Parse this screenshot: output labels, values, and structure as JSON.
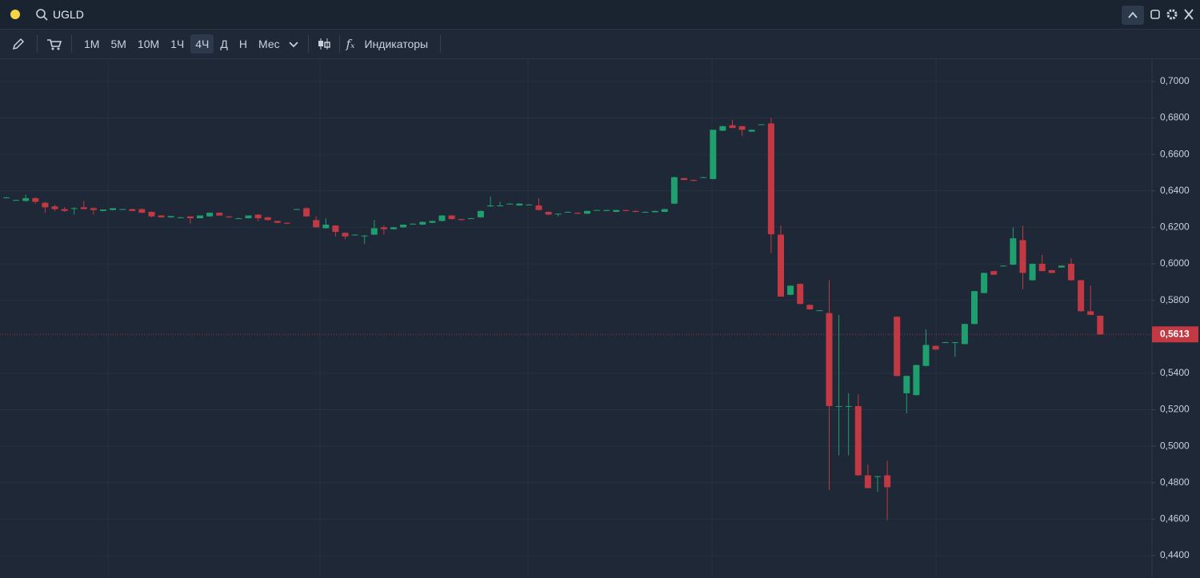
{
  "header": {
    "symbol": "UGLD"
  },
  "toolbar": {
    "intervals": [
      {
        "label": "1М",
        "active": false
      },
      {
        "label": "5М",
        "active": false
      },
      {
        "label": "10М",
        "active": false
      },
      {
        "label": "1Ч",
        "active": false
      },
      {
        "label": "4Ч",
        "active": true
      },
      {
        "label": "Д",
        "active": false
      },
      {
        "label": "Н",
        "active": false
      },
      {
        "label": "Мес",
        "active": false
      }
    ],
    "indicators": "Индикаторы"
  },
  "chart_data": {
    "type": "candlestick",
    "categories": [
      null,
      null,
      null,
      null,
      null,
      null,
      null,
      null,
      null,
      null,
      null,
      null,
      null,
      null,
      null,
      null,
      null,
      null,
      null,
      null,
      null,
      null,
      null,
      null,
      null,
      null,
      null,
      null,
      null,
      null,
      null,
      null,
      null,
      null,
      null,
      null,
      null,
      null,
      null,
      null,
      null,
      null,
      null,
      null,
      null,
      null,
      null,
      null,
      null,
      null,
      null,
      null,
      null,
      null,
      null,
      null,
      null,
      null,
      null,
      null,
      null,
      null,
      null,
      null,
      null,
      null,
      null,
      null,
      null,
      null,
      null,
      null,
      null,
      null,
      null,
      null,
      null,
      null,
      null,
      null,
      null,
      null,
      null,
      null,
      null,
      null,
      null,
      null,
      null,
      null,
      null,
      null,
      null,
      null,
      null,
      null,
      null,
      null,
      null,
      null,
      null,
      null,
      null,
      null,
      null,
      null,
      null,
      null,
      null,
      null,
      null,
      null,
      null,
      null
    ],
    "open": [
      0.6364,
      0.635,
      0.6345,
      0.636,
      0.6335,
      0.6315,
      0.63,
      0.6305,
      0.631,
      0.6305,
      0.629,
      0.6295,
      0.63,
      0.63,
      0.63,
      0.6285,
      0.6265,
      0.6255,
      0.6255,
      0.626,
      0.625,
      0.626,
      0.628,
      0.626,
      0.625,
      0.625,
      0.627,
      0.6255,
      0.6235,
      0.6225,
      0.63,
      0.6305,
      0.624,
      0.6195,
      0.621,
      0.617,
      0.616,
      0.6155,
      0.616,
      0.62,
      0.619,
      0.62,
      0.622,
      0.6215,
      0.6225,
      0.6235,
      0.6265,
      0.6245,
      0.625,
      0.6255,
      0.6315,
      0.632,
      0.633,
      0.632,
      0.6325,
      0.632,
      0.6285,
      0.6275,
      0.6285,
      0.628,
      0.6275,
      0.6295,
      0.629,
      0.6285,
      0.6295,
      0.629,
      0.6285,
      0.6283,
      0.6285,
      0.633,
      0.647,
      0.646,
      0.6475,
      0.6465,
      0.673,
      0.676,
      0.6755,
      0.6725,
      0.6765,
      0.677,
      0.616,
      0.583,
      0.589,
      0.5775,
      0.5745,
      0.573,
      0.522,
      0.522,
      0.522,
      0.484,
      0.4835,
      0.484,
      0.571,
      0.529,
      0.528,
      0.544,
      0.555,
      0.557,
      0.557,
      0.556,
      0.567,
      0.584,
      0.596,
      0.599,
      0.5995,
      0.613,
      0.591,
      0.6,
      0.5965,
      0.598,
      0.6,
      0.591,
      0.574,
      0.5715
    ],
    "high": [
      0.6368,
      0.6352,
      0.638,
      0.6365,
      0.634,
      0.6325,
      0.631,
      0.631,
      0.6345,
      0.631,
      0.6298,
      0.6305,
      0.6302,
      0.6302,
      0.6305,
      0.6288,
      0.6267,
      0.6262,
      0.6257,
      0.6262,
      0.6265,
      0.6282,
      0.6282,
      0.6262,
      0.6252,
      0.6265,
      0.6272,
      0.6257,
      0.6237,
      0.6227,
      0.6302,
      0.631,
      0.626,
      0.625,
      0.6212,
      0.6172,
      0.6162,
      0.6157,
      0.624,
      0.621,
      0.6202,
      0.6215,
      0.6222,
      0.6232,
      0.6237,
      0.6267,
      0.6267,
      0.6247,
      0.6252,
      0.6292,
      0.637,
      0.634,
      0.6332,
      0.6332,
      0.6327,
      0.636,
      0.6287,
      0.6277,
      0.6287,
      0.6282,
      0.6292,
      0.6297,
      0.6297,
      0.6297,
      0.6297,
      0.6292,
      0.6287,
      0.6292,
      0.6302,
      0.6478,
      0.6472,
      0.6462,
      0.6477,
      0.6736,
      0.6757,
      0.679,
      0.6757,
      0.6737,
      0.6767,
      0.68,
      0.621,
      0.5882,
      0.5892,
      0.5777,
      0.5747,
      0.591,
      0.572,
      0.529,
      0.5285,
      0.49,
      0.4837,
      0.492,
      0.5712,
      0.5387,
      0.5447,
      0.564,
      0.5552,
      0.5572,
      0.5572,
      0.5672,
      0.5852,
      0.5952,
      0.5962,
      0.5992,
      0.62,
      0.621,
      0.6002,
      0.605,
      0.5967,
      0.5992,
      0.603,
      0.5912,
      0.588,
      0.5717
    ],
    "low": [
      0.636,
      0.6348,
      0.634,
      0.633,
      0.628,
      0.629,
      0.6285,
      0.627,
      0.63,
      0.627,
      0.6288,
      0.6293,
      0.6298,
      0.6288,
      0.6278,
      0.6255,
      0.6253,
      0.6253,
      0.6253,
      0.622,
      0.6248,
      0.6258,
      0.6263,
      0.6253,
      0.6248,
      0.6248,
      0.6235,
      0.6238,
      0.6223,
      0.6218,
      0.6298,
      0.6258,
      0.6198,
      0.6193,
      0.615,
      0.6135,
      0.6158,
      0.611,
      0.6158,
      0.616,
      0.6188,
      0.6198,
      0.6218,
      0.6213,
      0.6223,
      0.6233,
      0.6243,
      0.6238,
      0.6248,
      0.6253,
      0.6313,
      0.6318,
      0.6328,
      0.6318,
      0.6323,
      0.6293,
      0.6268,
      0.626,
      0.6283,
      0.6273,
      0.6273,
      0.6293,
      0.6288,
      0.6283,
      0.6288,
      0.6283,
      0.6283,
      0.6281,
      0.6283,
      0.6328,
      0.6458,
      0.6453,
      0.6473,
      0.6463,
      0.6728,
      0.6743,
      0.67,
      0.6723,
      0.6763,
      0.606,
      0.582,
      0.5828,
      0.5778,
      0.5748,
      0.5743,
      0.476,
      0.495,
      0.495,
      0.4838,
      0.4768,
      0.475,
      0.4595,
      0.5383,
      0.518,
      0.5278,
      0.5438,
      0.5528,
      0.5568,
      0.549,
      0.5558,
      0.5668,
      0.5838,
      0.5938,
      0.5988,
      0.5993,
      0.586,
      0.5908,
      0.5958,
      0.5948,
      0.5978,
      0.5908,
      0.5738,
      0.5718,
      0.5611
    ],
    "close": [
      0.6364,
      0.635,
      0.636,
      0.634,
      0.631,
      0.63,
      0.629,
      0.6305,
      0.63,
      0.6295,
      0.6298,
      0.6305,
      0.63,
      0.629,
      0.628,
      0.626,
      0.6255,
      0.6262,
      0.6255,
      0.625,
      0.6265,
      0.628,
      0.6265,
      0.6255,
      0.625,
      0.6265,
      0.625,
      0.624,
      0.6225,
      0.622,
      0.63,
      0.626,
      0.62,
      0.6215,
      0.6175,
      0.615,
      0.616,
      0.6155,
      0.6195,
      0.619,
      0.62,
      0.6215,
      0.622,
      0.623,
      0.6235,
      0.6265,
      0.6245,
      0.624,
      0.625,
      0.629,
      0.632,
      0.632,
      0.633,
      0.633,
      0.6325,
      0.6295,
      0.627,
      0.6275,
      0.6285,
      0.6275,
      0.629,
      0.6295,
      0.6295,
      0.6295,
      0.629,
      0.6285,
      0.6285,
      0.629,
      0.63,
      0.6475,
      0.646,
      0.6455,
      0.6475,
      0.6735,
      0.6755,
      0.6745,
      0.6735,
      0.6735,
      0.6765,
      0.6162,
      0.582,
      0.588,
      0.578,
      0.575,
      0.5745,
      0.522,
      0.522,
      0.522,
      0.484,
      0.477,
      0.4835,
      0.4775,
      0.5385,
      0.5385,
      0.5445,
      0.5555,
      0.553,
      0.557,
      0.557,
      0.567,
      0.585,
      0.595,
      0.594,
      0.599,
      0.614,
      0.595,
      0.6,
      0.596,
      0.595,
      0.599,
      0.591,
      0.574,
      0.572,
      0.5613
    ],
    "up_color": "#1f9e6e",
    "down_color": "#c23843",
    "ylim": [
      0.4277,
      0.7118
    ],
    "yticks": [
      {
        "value": 0.7,
        "label": "0,7000"
      },
      {
        "value": 0.68,
        "label": "0,6800"
      },
      {
        "value": 0.66,
        "label": "0,6600"
      },
      {
        "value": 0.64,
        "label": "0,6400"
      },
      {
        "value": 0.62,
        "label": "0,6200"
      },
      {
        "value": 0.6,
        "label": "0,6000"
      },
      {
        "value": 0.58,
        "label": "0,5800"
      },
      {
        "value": 0.54,
        "label": "0,5400"
      },
      {
        "value": 0.52,
        "label": "0,5200"
      },
      {
        "value": 0.5,
        "label": "0,5000"
      },
      {
        "value": 0.48,
        "label": "0,4800"
      },
      {
        "value": 0.46,
        "label": "0,4600"
      },
      {
        "value": 0.44,
        "label": "0,4400"
      }
    ],
    "grid": true,
    "last_price": {
      "value": 0.5613,
      "label": "0,5613"
    }
  }
}
